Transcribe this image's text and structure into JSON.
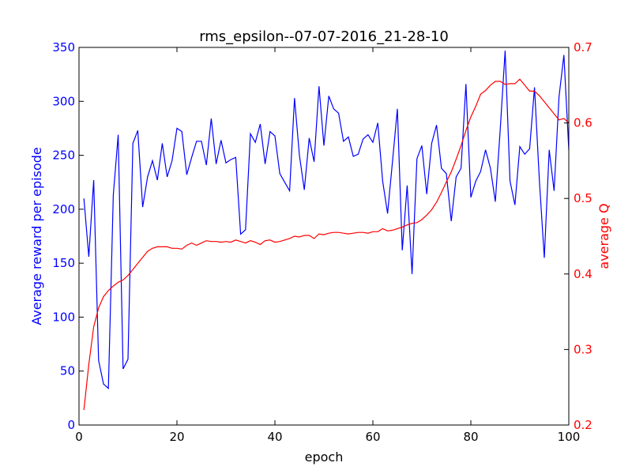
{
  "chart_data": {
    "type": "line",
    "title": "rms_epsilon--07-07-2016_21-28-10",
    "xlabel": "epoch",
    "xlim": [
      0,
      100
    ],
    "x_ticks": [
      "0",
      "20",
      "40",
      "60",
      "80",
      "100"
    ],
    "grid": false,
    "left_axis": {
      "label": "Average reward per episode",
      "color": "#0000ff",
      "ylim": [
        0,
        350
      ],
      "ticks": [
        "0",
        "50",
        "100",
        "150",
        "200",
        "250",
        "300",
        "350"
      ]
    },
    "right_axis": {
      "label": "average Q",
      "color": "#ff0000",
      "ylim": [
        0.2,
        0.7
      ],
      "ticks": [
        "0.2",
        "0.3",
        "0.4",
        "0.5",
        "0.6",
        "0.7"
      ]
    },
    "x": [
      1,
      2,
      3,
      4,
      5,
      6,
      7,
      8,
      9,
      10,
      11,
      12,
      13,
      14,
      15,
      16,
      17,
      18,
      19,
      20,
      21,
      22,
      23,
      24,
      25,
      26,
      27,
      28,
      29,
      30,
      31,
      32,
      33,
      34,
      35,
      36,
      37,
      38,
      39,
      40,
      41,
      42,
      43,
      44,
      45,
      46,
      47,
      48,
      49,
      50,
      51,
      52,
      53,
      54,
      55,
      56,
      57,
      58,
      59,
      60,
      61,
      62,
      63,
      64,
      65,
      66,
      67,
      68,
      69,
      70,
      71,
      72,
      73,
      74,
      75,
      76,
      77,
      78,
      79,
      80,
      81,
      82,
      83,
      84,
      85,
      86,
      87,
      88,
      89,
      90,
      91,
      92,
      93,
      94,
      95,
      96,
      97,
      98,
      99,
      100
    ],
    "series": [
      {
        "axis": "left",
        "color": "#0000ff",
        "values": [
          210,
          156,
          227,
          60,
          38,
          34,
          213,
          269,
          52,
          61,
          261,
          273,
          202,
          230,
          245,
          227,
          261,
          230,
          245,
          275,
          272,
          232,
          248,
          263,
          263,
          241,
          284,
          242,
          264,
          243,
          246,
          248,
          177,
          181,
          270,
          262,
          279,
          242,
          272,
          268,
          233,
          225,
          217,
          303,
          250,
          218,
          266,
          244,
          314,
          259,
          305,
          293,
          289,
          263,
          267,
          249,
          251,
          265,
          269,
          262,
          280,
          226,
          196,
          244,
          293,
          162,
          222,
          140,
          247,
          259,
          214,
          261,
          278,
          238,
          233,
          189,
          230,
          238,
          316,
          211,
          226,
          235,
          255,
          238,
          207,
          274,
          347,
          226,
          204,
          258,
          251,
          256,
          313,
          226,
          155,
          255,
          217,
          304,
          343,
          255
        ]
      },
      {
        "axis": "right",
        "color": "#ff0000",
        "values": [
          0.22,
          0.28,
          0.33,
          0.355,
          0.37,
          0.378,
          0.384,
          0.389,
          0.392,
          0.398,
          0.406,
          0.414,
          0.422,
          0.43,
          0.434,
          0.436,
          0.436,
          0.436,
          0.434,
          0.434,
          0.433,
          0.438,
          0.441,
          0.438,
          0.441,
          0.444,
          0.443,
          0.443,
          0.442,
          0.443,
          0.442,
          0.445,
          0.443,
          0.441,
          0.444,
          0.442,
          0.439,
          0.444,
          0.445,
          0.442,
          0.443,
          0.445,
          0.447,
          0.45,
          0.449,
          0.451,
          0.451,
          0.447,
          0.453,
          0.452,
          0.454,
          0.455,
          0.455,
          0.454,
          0.453,
          0.454,
          0.455,
          0.455,
          0.454,
          0.456,
          0.456,
          0.46,
          0.457,
          0.458,
          0.46,
          0.462,
          0.465,
          0.467,
          0.468,
          0.472,
          0.478,
          0.485,
          0.495,
          0.508,
          0.522,
          0.535,
          0.552,
          0.57,
          0.59,
          0.608,
          0.622,
          0.638,
          0.643,
          0.65,
          0.655,
          0.655,
          0.651,
          0.652,
          0.652,
          0.658,
          0.65,
          0.642,
          0.642,
          0.636,
          0.628,
          0.62,
          0.612,
          0.604,
          0.606,
          0.6
        ]
      }
    ]
  }
}
